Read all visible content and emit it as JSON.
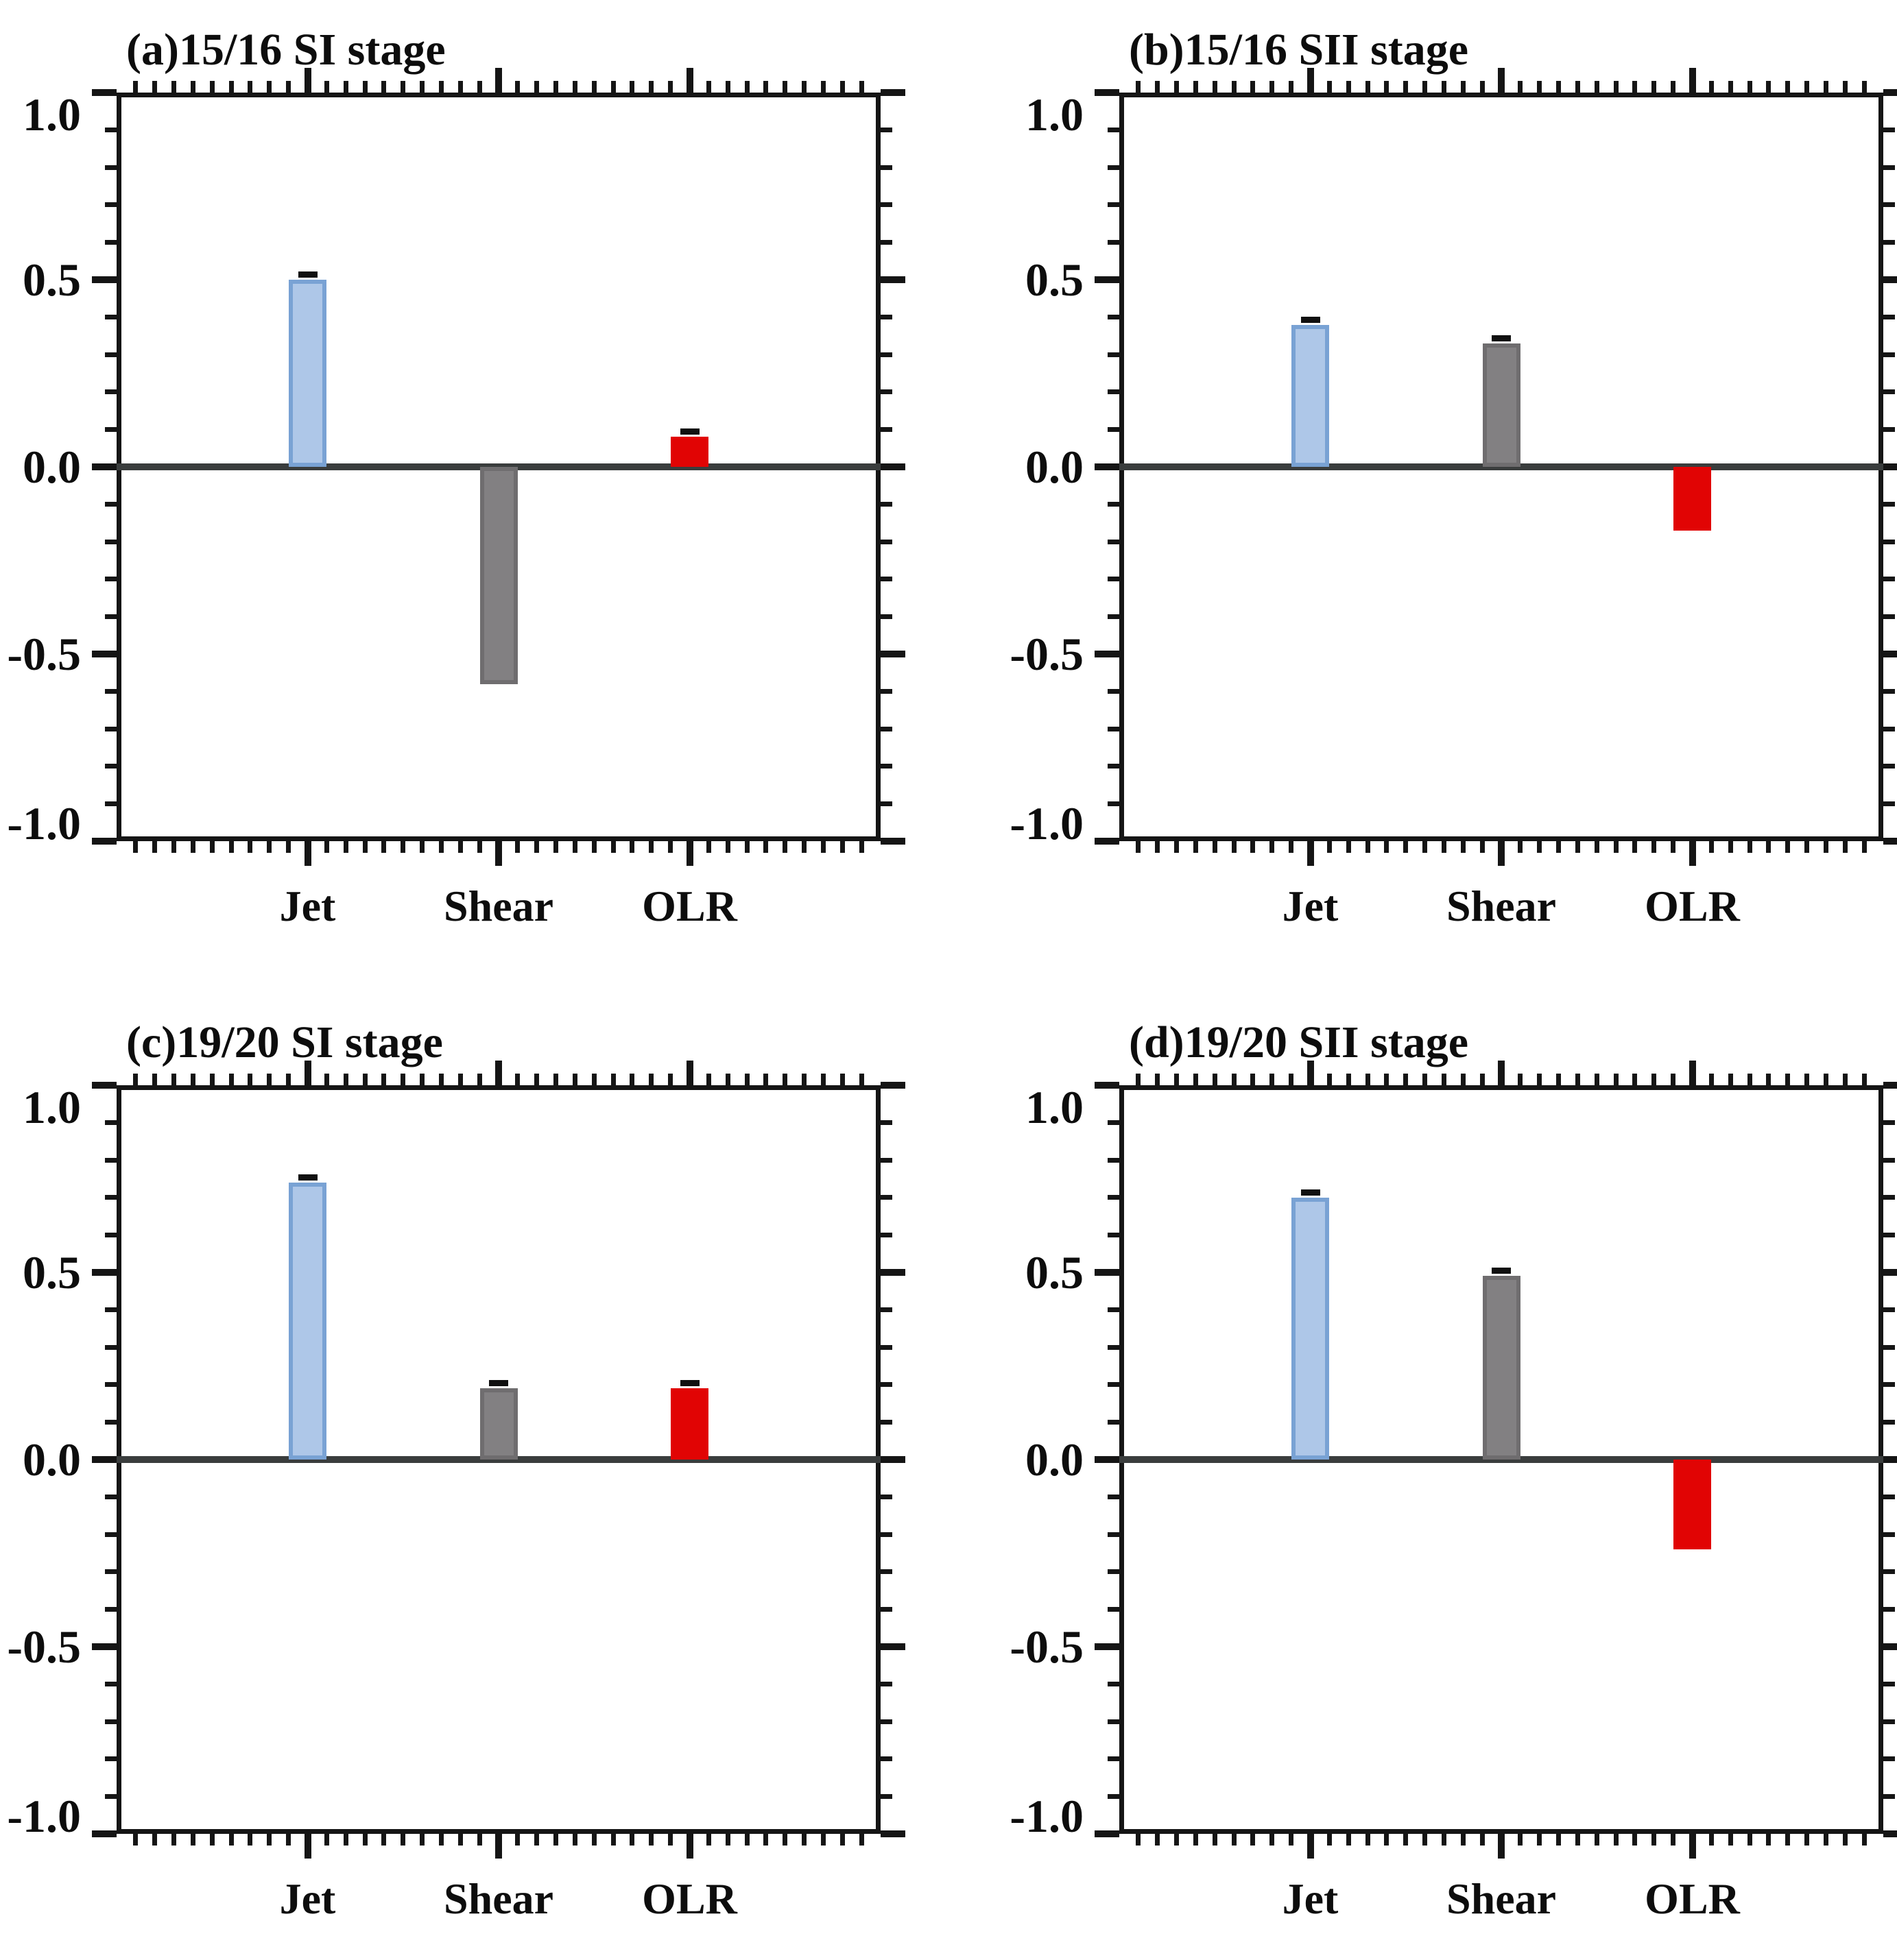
{
  "figure": {
    "y_axis": {
      "tick_values": [
        1.0,
        0.5,
        0.0,
        -0.5,
        -1.0
      ],
      "tick_labels": [
        "1.0",
        "0.5",
        "0.0",
        "-0.5",
        "-1.0"
      ],
      "range": [
        -1.0,
        1.0
      ],
      "minor_step": 0.1
    },
    "categories": [
      "Jet",
      "Shear",
      "OLR"
    ],
    "colors": {
      "jet_fill": "#AEC7E8",
      "jet_border": "#79A2D4",
      "shear_fill": "#828082",
      "shear_border": "#6F6D6F",
      "olr_fill": "#E10404",
      "olr_border": "",
      "axis": "#151515",
      "zero_line": "#3a3d3d",
      "error_cap": "#101010"
    }
  },
  "chart_data": [
    {
      "type": "bar",
      "title": "(a)15/16 SI stage",
      "categories": [
        "Jet",
        "Shear",
        "OLR"
      ],
      "values": [
        0.5,
        -0.58,
        0.08
      ],
      "error_caps": [
        true,
        false,
        true
      ],
      "ylim": [
        -1.0,
        1.0
      ],
      "ylabel": "",
      "xlabel": "",
      "grid": false,
      "legend": false
    },
    {
      "type": "bar",
      "title": "(b)15/16 SII stage",
      "categories": [
        "Jet",
        "Shear",
        "OLR"
      ],
      "values": [
        0.38,
        0.33,
        -0.17
      ],
      "error_caps": [
        true,
        true,
        false
      ],
      "ylim": [
        -1.0,
        1.0
      ],
      "ylabel": "",
      "xlabel": "",
      "grid": false,
      "legend": false
    },
    {
      "type": "bar",
      "title": "(c)19/20 SI stage",
      "categories": [
        "Jet",
        "Shear",
        "OLR"
      ],
      "values": [
        0.74,
        0.19,
        0.19
      ],
      "error_caps": [
        true,
        true,
        true
      ],
      "ylim": [
        -1.0,
        1.0
      ],
      "ylabel": "",
      "xlabel": "",
      "grid": false,
      "legend": false
    },
    {
      "type": "bar",
      "title": "(d)19/20 SII stage",
      "categories": [
        "Jet",
        "Shear",
        "OLR"
      ],
      "values": [
        0.7,
        0.49,
        -0.24
      ],
      "error_caps": [
        true,
        true,
        false
      ],
      "ylim": [
        -1.0,
        1.0
      ],
      "ylabel": "",
      "xlabel": "",
      "grid": false,
      "legend": false
    }
  ]
}
